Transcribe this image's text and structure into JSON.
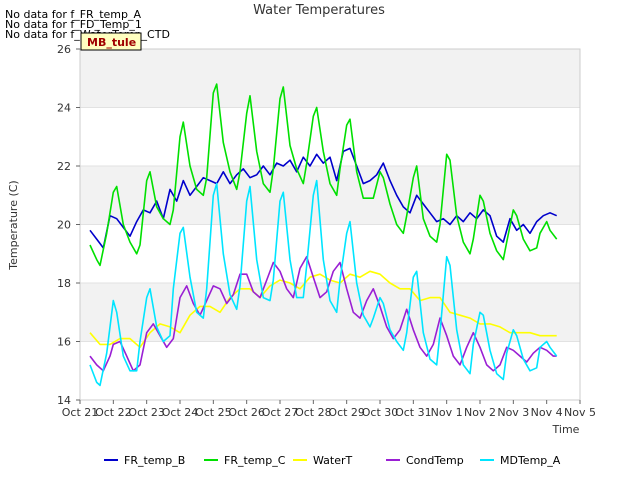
{
  "chart_data": {
    "type": "line",
    "title": "Water Temperatures",
    "xlabel": "Time",
    "ylabel": "Temperature (C)",
    "ylim": [
      14,
      26
    ],
    "xlim": [
      0,
      15
    ],
    "x_tick_values": [
      0,
      1,
      2,
      3,
      4,
      5,
      6,
      7,
      8,
      9,
      10,
      11,
      12,
      13,
      14,
      15
    ],
    "x_tick_labels": [
      "Oct 21",
      "Oct 22",
      "Oct 23",
      "Oct 24",
      "Oct 25",
      "Oct 26",
      "Oct 27",
      "Oct 28",
      "Oct 29",
      "Oct 30",
      "Oct 31",
      "Nov 1",
      "Nov 2",
      "Nov 3",
      "Nov 4",
      "Nov 5"
    ],
    "y_ticks": [
      14,
      16,
      18,
      20,
      22,
      24,
      26
    ],
    "grid": true,
    "legend_position": "bottom",
    "no_data_messages": [
      "No data for f_FR_temp_A",
      "No data for f_FD_Temp_1",
      "No data for f_WaterTemp_CTD"
    ],
    "annotation": "MB_tule",
    "series": [
      {
        "name": "FR_temp_B",
        "color": "#0000cc",
        "x": [
          0.3,
          0.5,
          0.7,
          0.9,
          1.1,
          1.3,
          1.5,
          1.7,
          1.9,
          2.1,
          2.3,
          2.5,
          2.7,
          2.9,
          3.1,
          3.3,
          3.5,
          3.7,
          3.9,
          4.1,
          4.3,
          4.5,
          4.7,
          4.9,
          5.1,
          5.3,
          5.5,
          5.7,
          5.9,
          6.1,
          6.3,
          6.5,
          6.7,
          6.9,
          7.1,
          7.3,
          7.5,
          7.7,
          7.9,
          8.1,
          8.3,
          8.5,
          8.7,
          8.9,
          9.1,
          9.3,
          9.5,
          9.7,
          9.9,
          10.1,
          10.3,
          10.5,
          10.7,
          10.9,
          11.1,
          11.3,
          11.5,
          11.7,
          11.9,
          12.1,
          12.3,
          12.5,
          12.7,
          12.9,
          13.1,
          13.3,
          13.5,
          13.7,
          13.9,
          14.1,
          14.3
        ],
        "y": [
          19.8,
          19.5,
          19.2,
          20.3,
          20.2,
          19.9,
          19.6,
          20.1,
          20.5,
          20.4,
          20.8,
          20.2,
          21.2,
          20.8,
          21.5,
          21.0,
          21.3,
          21.6,
          21.5,
          21.4,
          21.8,
          21.4,
          21.7,
          21.9,
          21.6,
          21.7,
          22.0,
          21.7,
          22.1,
          22.0,
          22.2,
          21.8,
          22.3,
          22.0,
          22.4,
          22.1,
          22.3,
          21.5,
          22.5,
          22.6,
          22.0,
          21.4,
          21.5,
          21.7,
          22.1,
          21.5,
          21.0,
          20.6,
          20.4,
          21.0,
          20.7,
          20.4,
          20.1,
          20.2,
          20.0,
          20.3,
          20.1,
          20.4,
          20.2,
          20.5,
          20.3,
          19.6,
          19.4,
          20.2,
          19.8,
          20.0,
          19.7,
          20.1,
          20.3,
          20.4,
          20.3
        ]
      },
      {
        "name": "FR_temp_C",
        "color": "#00e000",
        "x": [
          0.3,
          0.5,
          0.6,
          0.8,
          1.0,
          1.1,
          1.3,
          1.5,
          1.7,
          1.8,
          2.0,
          2.1,
          2.3,
          2.5,
          2.7,
          2.8,
          3.0,
          3.1,
          3.3,
          3.5,
          3.7,
          3.8,
          4.0,
          4.1,
          4.3,
          4.5,
          4.7,
          4.8,
          5.0,
          5.1,
          5.3,
          5.5,
          5.7,
          5.8,
          6.0,
          6.1,
          6.3,
          6.5,
          6.7,
          6.8,
          7.0,
          7.1,
          7.3,
          7.5,
          7.7,
          7.8,
          8.0,
          8.1,
          8.3,
          8.5,
          8.7,
          8.8,
          9.0,
          9.1,
          9.3,
          9.5,
          9.7,
          9.8,
          10.0,
          10.1,
          10.3,
          10.5,
          10.7,
          10.8,
          11.0,
          11.1,
          11.3,
          11.5,
          11.7,
          11.8,
          12.0,
          12.1,
          12.3,
          12.5,
          12.7,
          12.8,
          13.0,
          13.1,
          13.3,
          13.5,
          13.7,
          13.8,
          14.0,
          14.1,
          14.3
        ],
        "y": [
          19.3,
          18.8,
          18.6,
          19.7,
          21.1,
          21.3,
          20.0,
          19.4,
          19.0,
          19.3,
          21.5,
          21.8,
          20.6,
          20.2,
          20.0,
          20.5,
          23.0,
          23.5,
          22.0,
          21.2,
          21.0,
          21.6,
          24.5,
          24.8,
          22.8,
          21.8,
          21.2,
          21.8,
          23.8,
          24.4,
          22.5,
          21.4,
          21.1,
          21.9,
          24.3,
          24.7,
          22.7,
          21.9,
          21.4,
          22.1,
          23.7,
          24.0,
          22.5,
          21.4,
          21.0,
          21.9,
          23.4,
          23.6,
          21.8,
          20.9,
          20.9,
          20.9,
          21.8,
          21.6,
          20.7,
          20.0,
          19.7,
          20.3,
          21.6,
          22.0,
          20.2,
          19.6,
          19.4,
          20.0,
          22.4,
          22.2,
          20.3,
          19.4,
          19.0,
          19.5,
          21.0,
          20.8,
          19.7,
          19.1,
          18.8,
          19.4,
          20.5,
          20.3,
          19.5,
          19.1,
          19.2,
          19.7,
          20.1,
          19.8,
          19.5
        ]
      },
      {
        "name": "WaterT",
        "color": "#ffff00",
        "x": [
          0.3,
          0.6,
          0.9,
          1.2,
          1.5,
          1.8,
          2.1,
          2.4,
          2.7,
          3.0,
          3.3,
          3.6,
          3.9,
          4.2,
          4.5,
          4.8,
          5.1,
          5.4,
          5.7,
          6.0,
          6.3,
          6.6,
          6.9,
          7.2,
          7.5,
          7.8,
          8.1,
          8.4,
          8.7,
          9.0,
          9.3,
          9.6,
          9.9,
          10.2,
          10.5,
          10.8,
          11.1,
          11.4,
          11.7,
          12.0,
          12.3,
          12.6,
          12.9,
          13.2,
          13.5,
          13.8,
          14.1,
          14.3
        ],
        "y": [
          16.3,
          15.9,
          15.9,
          16.1,
          16.1,
          15.8,
          16.3,
          16.6,
          16.5,
          16.3,
          16.9,
          17.2,
          17.2,
          17.0,
          17.5,
          17.8,
          17.8,
          17.5,
          17.9,
          18.1,
          18.0,
          17.8,
          18.2,
          18.3,
          18.1,
          18.0,
          18.3,
          18.2,
          18.4,
          18.3,
          18.0,
          17.8,
          17.8,
          17.4,
          17.5,
          17.5,
          17.0,
          16.9,
          16.8,
          16.6,
          16.6,
          16.5,
          16.3,
          16.3,
          16.3,
          16.2,
          16.2,
          16.2
        ]
      },
      {
        "name": "CondTemp",
        "color": "#9a1fd4",
        "x": [
          0.3,
          0.5,
          0.7,
          0.9,
          1.0,
          1.2,
          1.4,
          1.6,
          1.8,
          2.0,
          2.2,
          2.4,
          2.6,
          2.8,
          3.0,
          3.2,
          3.4,
          3.6,
          3.8,
          4.0,
          4.2,
          4.4,
          4.6,
          4.8,
          5.0,
          5.2,
          5.4,
          5.6,
          5.8,
          6.0,
          6.2,
          6.4,
          6.6,
          6.8,
          7.0,
          7.2,
          7.4,
          7.6,
          7.8,
          8.0,
          8.2,
          8.4,
          8.6,
          8.8,
          9.0,
          9.2,
          9.4,
          9.6,
          9.8,
          10.0,
          10.2,
          10.4,
          10.6,
          10.8,
          11.0,
          11.2,
          11.4,
          11.6,
          11.8,
          12.0,
          12.2,
          12.4,
          12.6,
          12.8,
          13.0,
          13.2,
          13.4,
          13.6,
          13.8,
          14.0,
          14.2,
          14.3
        ],
        "y": [
          15.5,
          15.2,
          15.0,
          15.5,
          15.9,
          16.0,
          15.5,
          15.0,
          15.2,
          16.3,
          16.6,
          16.2,
          15.8,
          16.1,
          17.5,
          17.9,
          17.3,
          16.9,
          17.4,
          17.9,
          17.8,
          17.3,
          17.6,
          18.3,
          18.3,
          17.7,
          17.5,
          18.1,
          18.7,
          18.4,
          17.8,
          17.5,
          18.5,
          18.9,
          18.2,
          17.5,
          17.7,
          18.4,
          18.7,
          17.8,
          17.0,
          16.8,
          17.4,
          17.8,
          17.2,
          16.5,
          16.1,
          16.4,
          17.1,
          16.4,
          15.8,
          15.5,
          15.9,
          16.8,
          16.2,
          15.5,
          15.2,
          15.8,
          16.3,
          15.8,
          15.2,
          15.0,
          15.2,
          15.8,
          15.7,
          15.5,
          15.3,
          15.6,
          15.8,
          15.7,
          15.5,
          15.5
        ]
      },
      {
        "name": "MDTemp_A",
        "color": "#00e5ff",
        "x": [
          0.3,
          0.5,
          0.6,
          0.8,
          1.0,
          1.1,
          1.3,
          1.5,
          1.7,
          1.8,
          2.0,
          2.1,
          2.3,
          2.5,
          2.7,
          2.8,
          3.0,
          3.1,
          3.3,
          3.5,
          3.7,
          3.8,
          4.0,
          4.1,
          4.3,
          4.5,
          4.7,
          4.8,
          5.0,
          5.1,
          5.3,
          5.5,
          5.7,
          5.8,
          6.0,
          6.1,
          6.3,
          6.5,
          6.7,
          6.8,
          7.0,
          7.1,
          7.3,
          7.5,
          7.7,
          7.8,
          8.0,
          8.1,
          8.3,
          8.5,
          8.7,
          8.8,
          9.0,
          9.1,
          9.3,
          9.5,
          9.7,
          9.8,
          10.0,
          10.1,
          10.3,
          10.5,
          10.7,
          10.8,
          11.0,
          11.1,
          11.3,
          11.5,
          11.7,
          11.8,
          12.0,
          12.1,
          12.3,
          12.5,
          12.7,
          12.8,
          13.0,
          13.1,
          13.3,
          13.5,
          13.7,
          13.8,
          14.0,
          14.1,
          14.3
        ],
        "y": [
          15.2,
          14.6,
          14.5,
          15.6,
          17.4,
          17.0,
          15.5,
          15.0,
          15.0,
          16.0,
          17.5,
          17.8,
          16.5,
          16.0,
          16.2,
          17.8,
          19.7,
          19.9,
          18.2,
          17.0,
          16.8,
          17.8,
          21.0,
          21.4,
          19.0,
          17.6,
          17.1,
          17.9,
          20.8,
          21.3,
          18.8,
          17.5,
          17.4,
          18.1,
          20.8,
          21.1,
          18.8,
          17.5,
          17.5,
          18.6,
          21.0,
          21.5,
          18.8,
          17.4,
          17.0,
          18.1,
          19.7,
          20.1,
          18.0,
          16.9,
          16.5,
          16.8,
          17.5,
          17.3,
          16.4,
          16.0,
          15.7,
          16.3,
          18.2,
          18.4,
          16.3,
          15.4,
          15.2,
          16.3,
          18.9,
          18.6,
          16.4,
          15.2,
          14.9,
          15.9,
          17.0,
          16.9,
          15.7,
          14.9,
          14.7,
          15.6,
          16.4,
          16.2,
          15.4,
          15.0,
          15.1,
          15.8,
          16.0,
          15.8,
          15.5
        ]
      }
    ]
  }
}
